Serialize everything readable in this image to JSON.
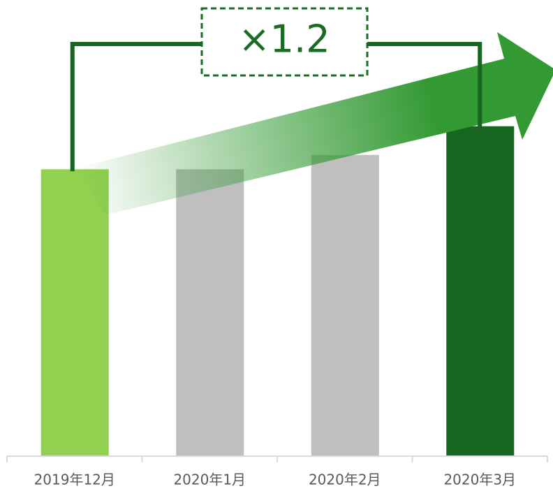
{
  "chart_data": {
    "type": "bar",
    "categories": [
      "2019年12月",
      "2020年1月",
      "2020年2月",
      "2020年3月"
    ],
    "values": [
      100,
      100,
      105,
      115
    ],
    "colors": [
      "#92d050",
      "#bfbfbf",
      "#bfbfbf",
      "#16661f"
    ],
    "ylim": [
      0,
      159
    ],
    "annotation": "×1.2"
  }
}
